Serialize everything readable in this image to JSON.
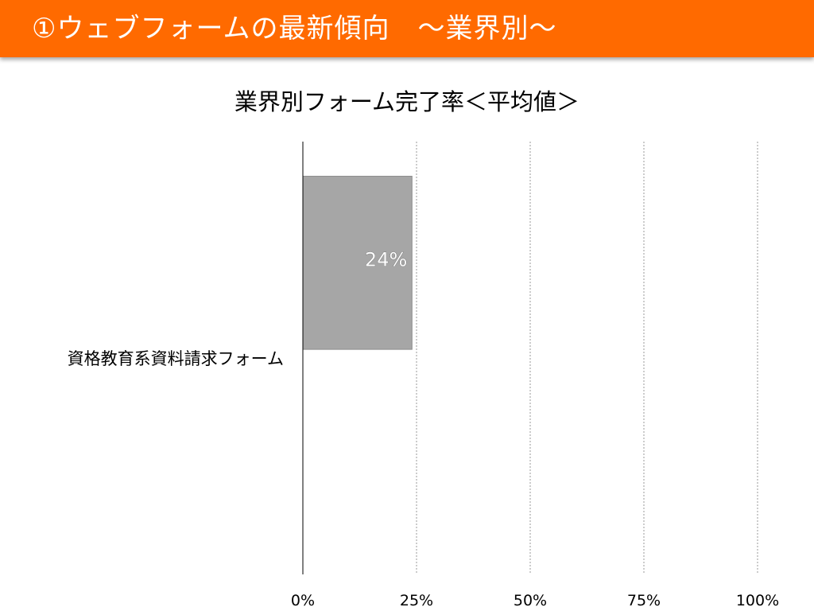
{
  "slide": {
    "title": "①ウェブフォームの最新傾向　～業界別～"
  },
  "chart_data": {
    "type": "bar",
    "orientation": "horizontal",
    "title": "業界別フォーム完了率＜平均値＞",
    "categories": [
      "資格教育系資料請求フォーム"
    ],
    "values": [
      24
    ],
    "value_labels": [
      "24%"
    ],
    "xlim": [
      0,
      100
    ],
    "x_ticks": [
      0,
      25,
      50,
      75,
      100
    ],
    "x_tick_labels": [
      "0%",
      "25%",
      "50%",
      "75%",
      "100%"
    ],
    "grid": "vertical-dotted",
    "bar_color": "#a6a6a6",
    "accent_color": "#ff6a00"
  }
}
